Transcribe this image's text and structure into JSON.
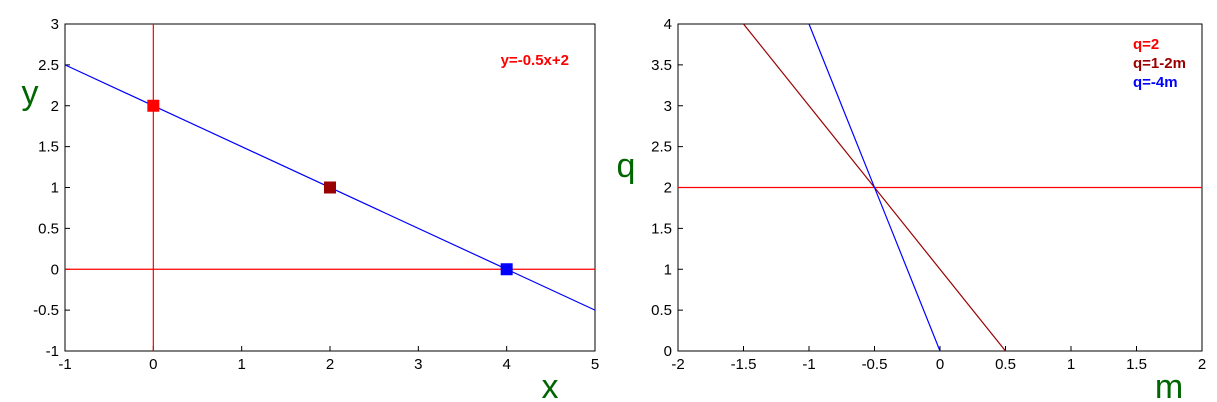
{
  "chart_data": [
    {
      "type": "line",
      "title": "",
      "xlabel": "x",
      "ylabel": "y",
      "xlim": [
        -1,
        5
      ],
      "ylim": [
        -1,
        3
      ],
      "xticks": [
        "-1",
        "0",
        "1",
        "2",
        "3",
        "4",
        "5"
      ],
      "yticks": [
        "-1",
        "-0.5",
        "0",
        "0.5",
        "1",
        "1.5",
        "2",
        "2.5",
        "3"
      ],
      "grid": false,
      "legend_position": "top-right",
      "legend": [
        {
          "label": "y=-0.5x+2",
          "color": "#ff0000"
        }
      ],
      "series": [
        {
          "kind": "line",
          "color": "#0000ff",
          "x": [
            -1,
            5
          ],
          "y": [
            2.5,
            -0.5
          ]
        },
        {
          "kind": "hline",
          "color": "#ff0000",
          "y": 0
        },
        {
          "kind": "vline",
          "color": "#ff0000",
          "x": 0
        }
      ],
      "points": [
        {
          "x": 0,
          "y": 2,
          "color": "#ff0000"
        },
        {
          "x": 2,
          "y": 1,
          "color": "#990000"
        },
        {
          "x": 4,
          "y": 0,
          "color": "#0000ff"
        }
      ]
    },
    {
      "type": "line",
      "title": "",
      "xlabel": "m",
      "ylabel": "q",
      "xlim": [
        -2,
        2
      ],
      "ylim": [
        0,
        4
      ],
      "xticks": [
        "-2",
        "-1.5",
        "-1",
        "-0.5",
        "0",
        "0.5",
        "1",
        "1.5",
        "2"
      ],
      "yticks": [
        "0",
        "0.5",
        "1",
        "1.5",
        "2",
        "2.5",
        "3",
        "3.5",
        "4"
      ],
      "grid": false,
      "legend_position": "top-right",
      "legend": [
        {
          "label": "q=2",
          "color": "#ff0000"
        },
        {
          "label": "q=1-2m",
          "color": "#990000"
        },
        {
          "label": "q=-4m",
          "color": "#0000ff"
        }
      ],
      "series": [
        {
          "kind": "hline",
          "color": "#ff0000",
          "y": 2
        },
        {
          "kind": "line",
          "color": "#990000",
          "x": [
            -1.5,
            0.5
          ],
          "y": [
            4,
            0
          ]
        },
        {
          "kind": "line",
          "color": "#0000ff",
          "x": [
            -1,
            0
          ],
          "y": [
            4,
            0
          ]
        }
      ]
    }
  ]
}
